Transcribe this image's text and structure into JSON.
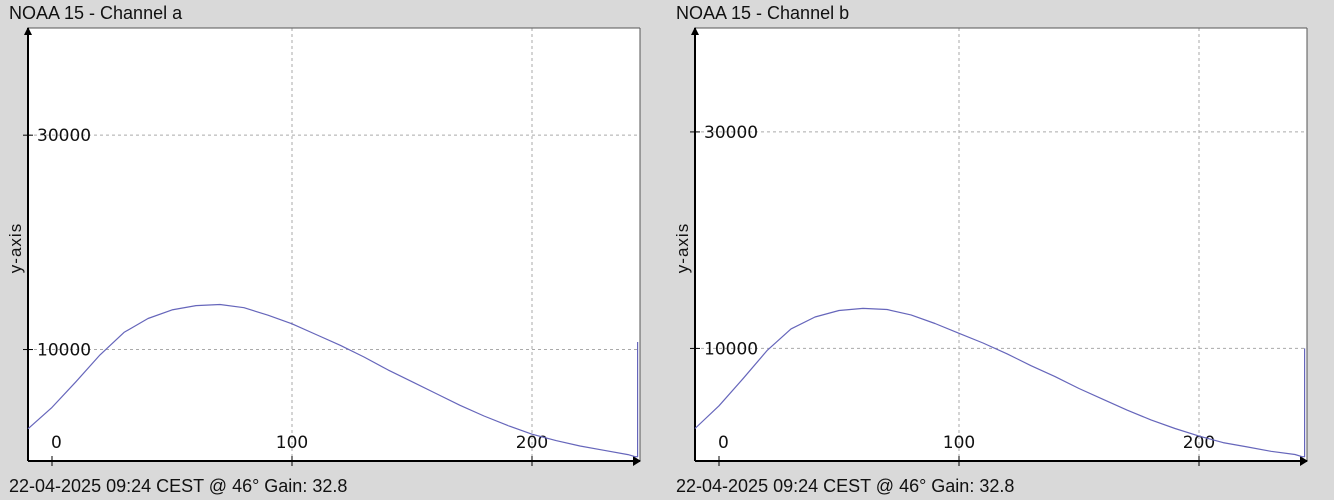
{
  "chart_data": [
    {
      "type": "line",
      "title": "NOAA 15 - Channel a",
      "ylabel": "y-axis",
      "footer": "22-04-2025 09:24 CEST @ 46° Gain: 32.8",
      "xlim": [
        -10,
        245
      ],
      "ylim": [
        -400,
        40000
      ],
      "x_ticks": [
        0,
        100,
        200
      ],
      "x_tick_labels": [
        "0",
        "100",
        "200"
      ],
      "y_ticks": [
        10000,
        30000
      ],
      "y_tick_labels": [
        "10000",
        "30000"
      ],
      "grid": true,
      "line_color": "#6666bb",
      "series": [
        {
          "x": [
            -10,
            0,
            10,
            20,
            30,
            40,
            50,
            60,
            70,
            80,
            90,
            100,
            110,
            120,
            130,
            140,
            150,
            160,
            170,
            180,
            190,
            200,
            210,
            220,
            230,
            240,
            243,
            244,
            244
          ],
          "values": [
            2600,
            4600,
            7000,
            9500,
            11600,
            12900,
            13700,
            14100,
            14200,
            13900,
            13200,
            12400,
            11400,
            10400,
            9300,
            8100,
            7000,
            5900,
            4800,
            3800,
            2900,
            2100,
            1500,
            1000,
            600,
            200,
            0,
            0,
            10700
          ]
        }
      ]
    },
    {
      "type": "line",
      "title": "NOAA 15 - Channel b",
      "ylabel": "y-axis",
      "footer": "22-04-2025 09:24 CEST @ 46° Gain: 32.8",
      "xlim": [
        -10,
        245
      ],
      "ylim": [
        -400,
        39600
      ],
      "x_ticks": [
        0,
        100,
        200
      ],
      "x_tick_labels": [
        "0",
        "100",
        "200"
      ],
      "y_ticks": [
        10000,
        30000
      ],
      "y_tick_labels": [
        "10000",
        "30000"
      ],
      "grid": true,
      "line_color": "#6666bb",
      "series": [
        {
          "x": [
            -10,
            0,
            10,
            20,
            30,
            40,
            50,
            60,
            70,
            80,
            90,
            100,
            110,
            120,
            130,
            140,
            150,
            160,
            170,
            180,
            190,
            200,
            210,
            220,
            230,
            240,
            243,
            244,
            244
          ],
          "values": [
            2600,
            4700,
            7200,
            9800,
            11800,
            12900,
            13500,
            13700,
            13600,
            13100,
            12300,
            11400,
            10500,
            9500,
            8400,
            7400,
            6300,
            5300,
            4300,
            3400,
            2600,
            1900,
            1300,
            900,
            500,
            200,
            0,
            0,
            10000
          ]
        }
      ]
    }
  ]
}
